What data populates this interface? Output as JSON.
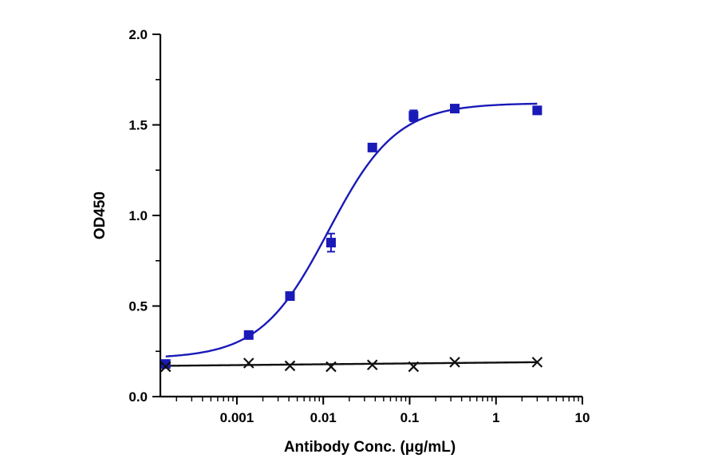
{
  "chart_data": {
    "type": "scatter",
    "xlabel": "Antibody Conc. (μg/mL)",
    "ylabel": "OD450",
    "xscale": "log",
    "xlim": [
      0.00013,
      10
    ],
    "ylim": [
      0,
      2.0
    ],
    "x_ticks": [
      {
        "value": 0.001,
        "label": "0.001"
      },
      {
        "value": 0.01,
        "label": "0.01"
      },
      {
        "value": 0.1,
        "label": "0.1"
      },
      {
        "value": 1,
        "label": "1"
      },
      {
        "value": 10,
        "label": "10"
      }
    ],
    "y_ticks": [
      {
        "value": 0,
        "label": "0.0"
      },
      {
        "value": 0.5,
        "label": "0.5"
      },
      {
        "value": 1.0,
        "label": "1.0"
      },
      {
        "value": 1.5,
        "label": "1.5"
      },
      {
        "value": 2.0,
        "label": "2.0"
      }
    ],
    "grid": false,
    "legend": "none",
    "series": [
      {
        "marker": "square",
        "color": "#1a1ab8",
        "fit": {
          "model": "4PL",
          "bottom": 0.21,
          "top": 1.62,
          "ec50": 0.0115,
          "hill": 1.1
        },
        "points": [
          {
            "x": 0.00015,
            "y": 0.18,
            "err": 0.01
          },
          {
            "x": 0.00137,
            "y": 0.34,
            "err": 0.01
          },
          {
            "x": 0.00412,
            "y": 0.555,
            "err": 0.01
          },
          {
            "x": 0.0123,
            "y": 0.85,
            "err": 0.05
          },
          {
            "x": 0.037,
            "y": 1.375,
            "err": 0.01
          },
          {
            "x": 0.111,
            "y": 1.55,
            "err": 0.03
          },
          {
            "x": 0.333,
            "y": 1.59,
            "err": 0.01
          },
          {
            "x": 3.0,
            "y": 1.58,
            "err": 0.02
          }
        ]
      },
      {
        "marker": "x",
        "color": "#111111",
        "fit": {
          "model": "linear",
          "y_start": 0.17,
          "y_end": 0.19
        },
        "points": [
          {
            "x": 0.00015,
            "y": 0.165
          },
          {
            "x": 0.00137,
            "y": 0.185
          },
          {
            "x": 0.00412,
            "y": 0.17
          },
          {
            "x": 0.0123,
            "y": 0.165
          },
          {
            "x": 0.037,
            "y": 0.175
          },
          {
            "x": 0.111,
            "y": 0.165
          },
          {
            "x": 0.333,
            "y": 0.19
          },
          {
            "x": 3.0,
            "y": 0.19
          }
        ]
      }
    ]
  }
}
